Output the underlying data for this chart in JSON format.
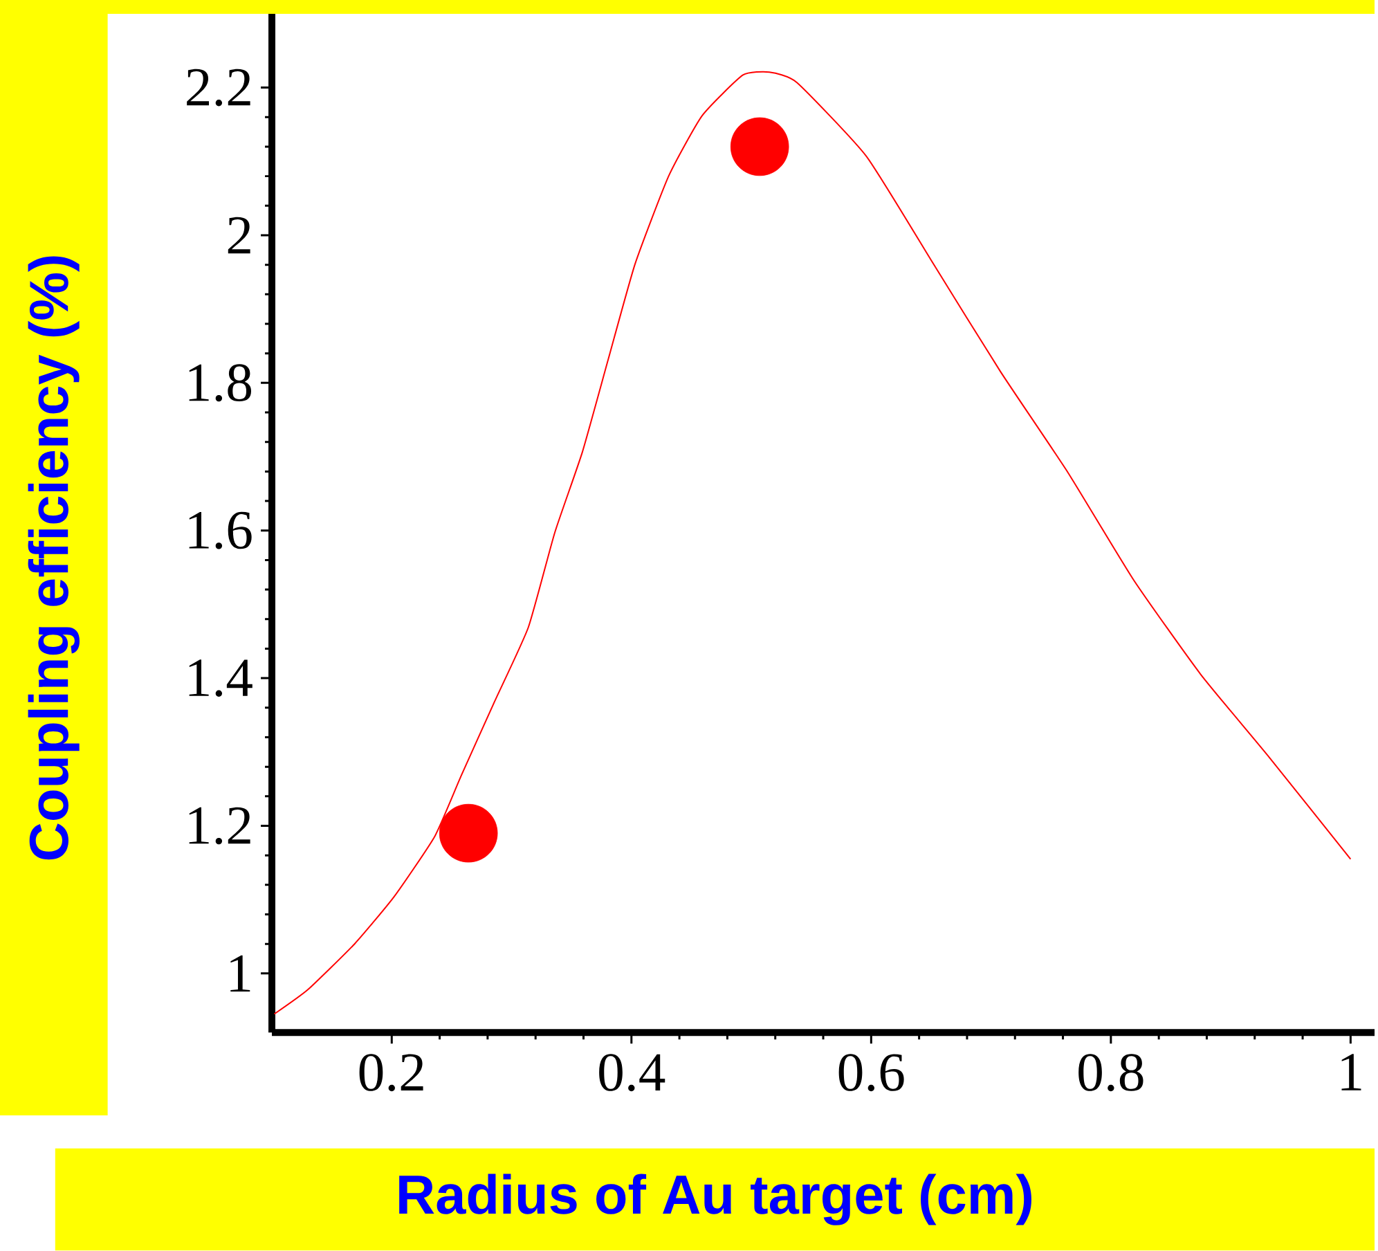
{
  "chart_data": {
    "type": "line",
    "xlabel": "Radius of Au target (cm)",
    "ylabel": "Coupling efficiency (%)",
    "xlim": [
      0.1,
      1.02
    ],
    "ylim": [
      0.92,
      2.3
    ],
    "xticks": [
      0.2,
      0.4,
      0.6,
      0.8,
      1
    ],
    "yticks": [
      1,
      1.2,
      1.4,
      1.6,
      1.8,
      2,
      2.2
    ],
    "series": [
      {
        "color": "#ff0000",
        "marker": "none",
        "x": [
          0.102,
          0.13,
          0.169,
          0.202,
          0.236,
          0.258,
          0.286,
          0.314,
          0.336,
          0.359,
          0.381,
          0.403,
          0.431,
          0.459,
          0.493,
          0.515,
          0.538,
          0.596,
          0.652,
          0.708,
          0.764,
          0.819,
          0.875,
          0.931,
          1.0
        ],
        "values": [
          0.945,
          0.978,
          1.04,
          1.104,
          1.186,
          1.268,
          1.369,
          1.469,
          1.597,
          1.706,
          1.834,
          1.961,
          2.08,
          2.162,
          2.217,
          2.221,
          2.207,
          2.107,
          1.961,
          1.815,
          1.679,
          1.533,
          1.405,
          1.295,
          1.155
        ]
      },
      {
        "type": "scatter",
        "color": "#ff0000",
        "marker": "circle",
        "x": [
          0.264,
          0.507
        ],
        "values": [
          1.19,
          2.12
        ]
      }
    ]
  }
}
